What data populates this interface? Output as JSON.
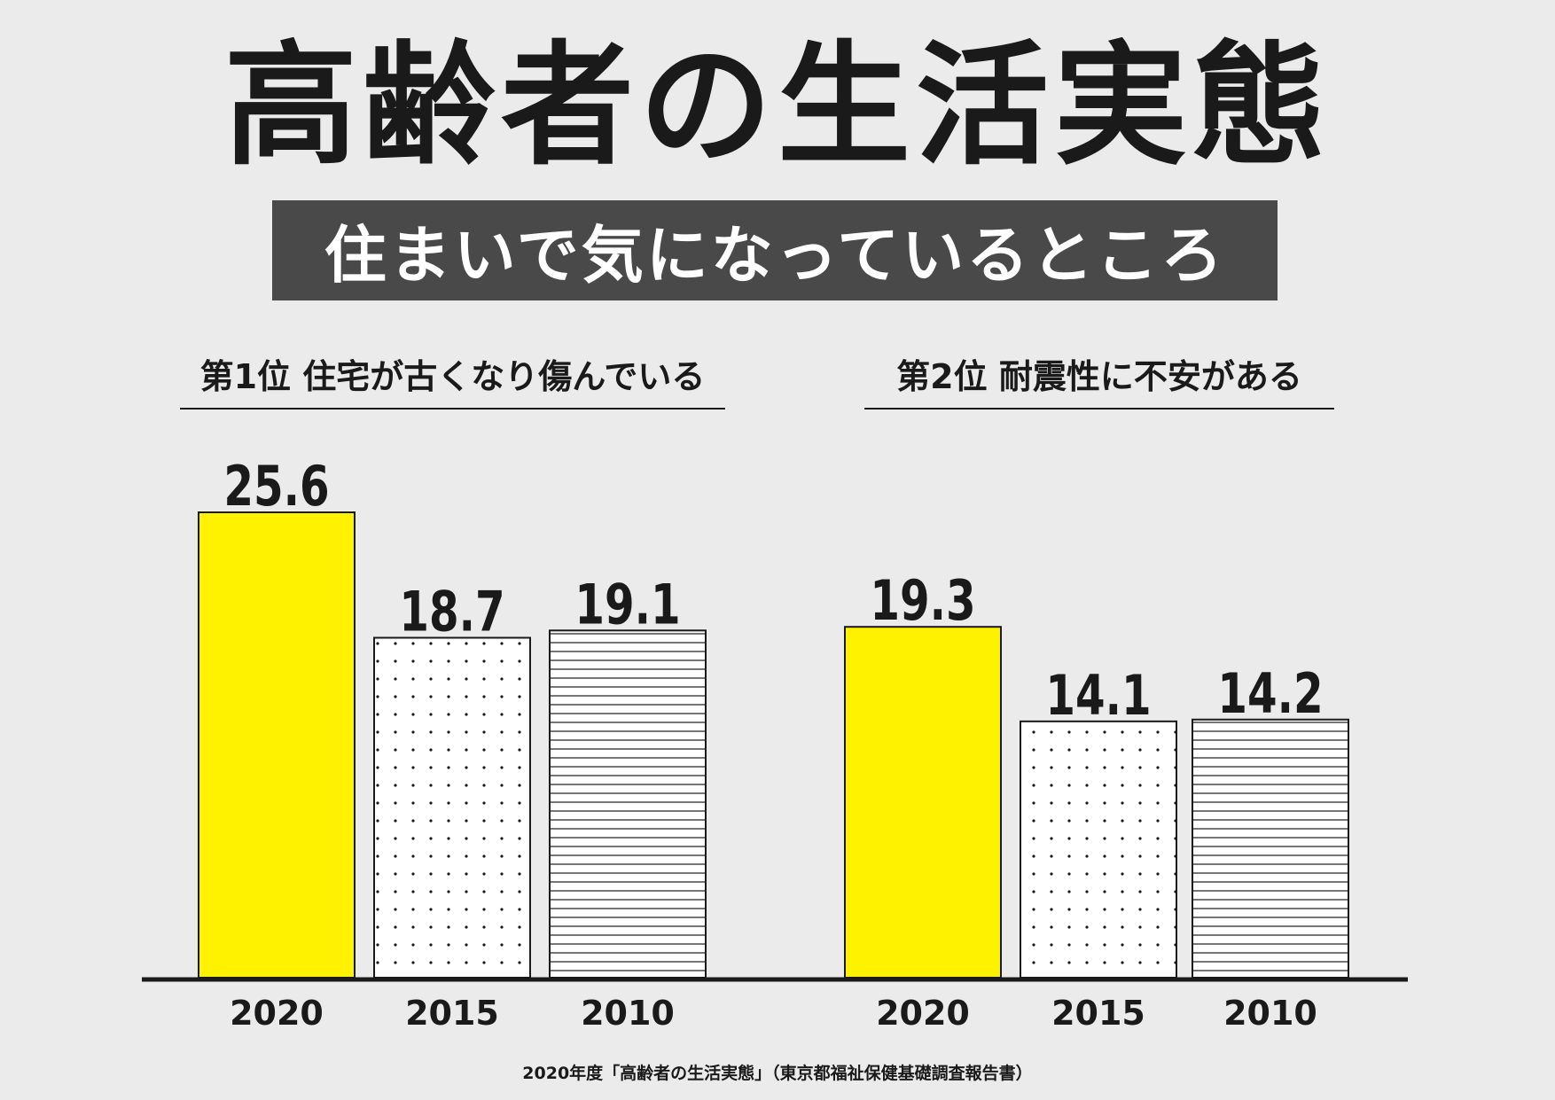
{
  "title": "高齢者の生活実態",
  "subtitle": "住まいで気になっているところ",
  "source": "2020年度「高齢者の生活実態」（東京都福祉保健基礎調査報告書）",
  "colors": {
    "highlight": "#fff200",
    "background": "#ebebeb",
    "subtitle_bg": "#4a494a",
    "ink": "#1a1a1a"
  },
  "chart_data": [
    {
      "type": "bar",
      "title": "第1位 住宅が古くなり傷んでいる",
      "categories": [
        "2020",
        "2015",
        "2010"
      ],
      "values": [
        25.6,
        18.7,
        19.1
      ],
      "fills": [
        "solid-yellow",
        "dots",
        "horizontal-lines"
      ],
      "ylim": [
        0,
        25.6
      ]
    },
    {
      "type": "bar",
      "title": "第2位 耐震性に不安がある",
      "categories": [
        "2020",
        "2015",
        "2010"
      ],
      "values": [
        19.3,
        14.1,
        14.2
      ],
      "fills": [
        "solid-yellow",
        "dots",
        "horizontal-lines"
      ],
      "ylim": [
        0,
        25.6
      ]
    }
  ]
}
